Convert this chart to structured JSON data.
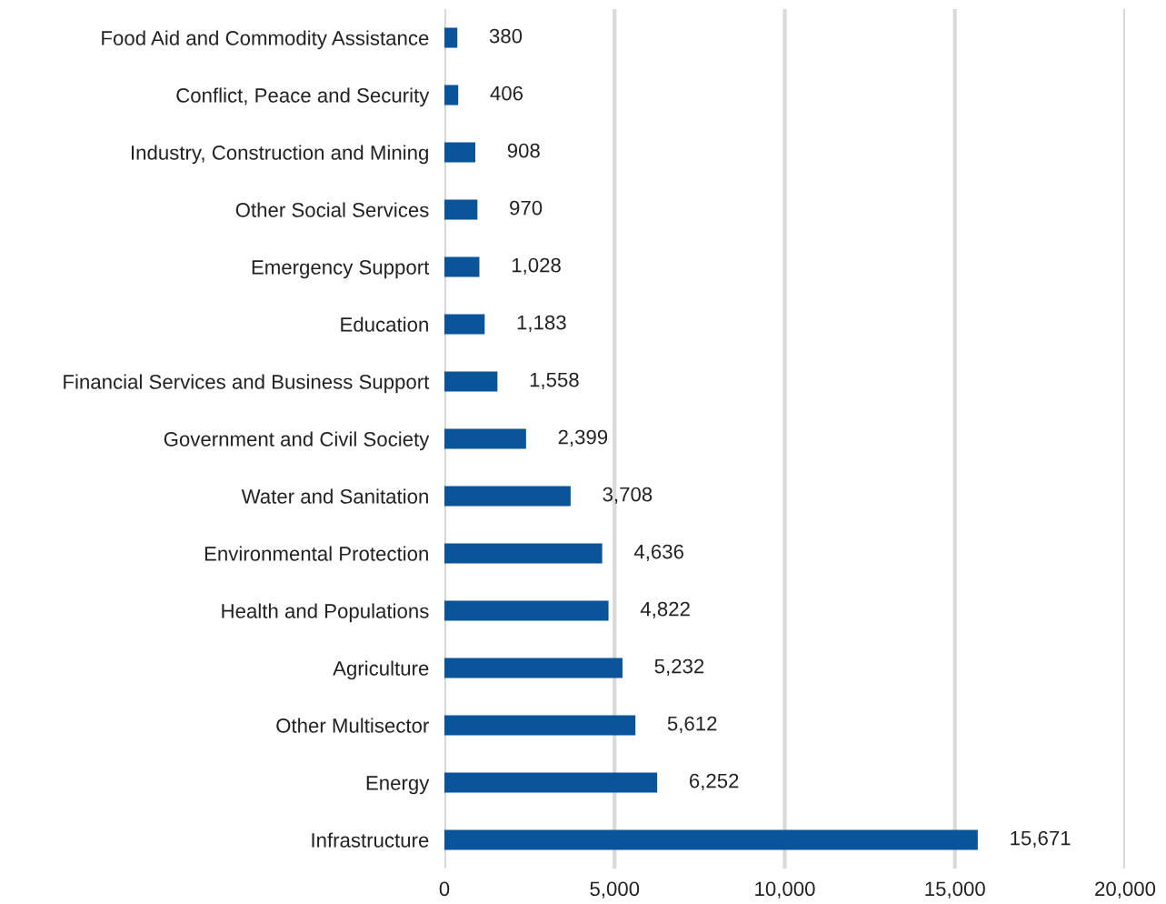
{
  "chart_data": {
    "type": "bar",
    "orientation": "horizontal",
    "categories": [
      "Food Aid and Commodity Assistance",
      "Conflict, Peace and Security",
      "Industry, Construction and Mining",
      "Other Social Services",
      "Emergency Support",
      "Education",
      "Financial Services and Business Support",
      "Government and Civil Society",
      "Water and Sanitation",
      "Environmental Protection",
      "Health and Populations",
      "Agriculture",
      "Other Multisector",
      "Energy",
      "Infrastructure"
    ],
    "values": [
      380,
      406,
      908,
      970,
      1028,
      1183,
      1558,
      2399,
      3708,
      4636,
      4822,
      5232,
      5612,
      6252,
      15671
    ],
    "value_labels": [
      "380",
      "406",
      "908",
      "970",
      "1,028",
      "1,183",
      "1,558",
      "2,399",
      "3,708",
      "4,636",
      "4,822",
      "5,232",
      "5,612",
      "6,252",
      "15,671"
    ],
    "color": "#0a5499",
    "xlim": [
      0,
      20000
    ],
    "xticks": [
      0,
      {
        "value": 5000,
        "label": "5,000"
      },
      {
        "value": 10000,
        "label": "10,000"
      },
      {
        "value": 15000,
        "label": "15,000"
      },
      {
        "value": 20000,
        "label": "20,000"
      }
    ],
    "grid": "x"
  }
}
